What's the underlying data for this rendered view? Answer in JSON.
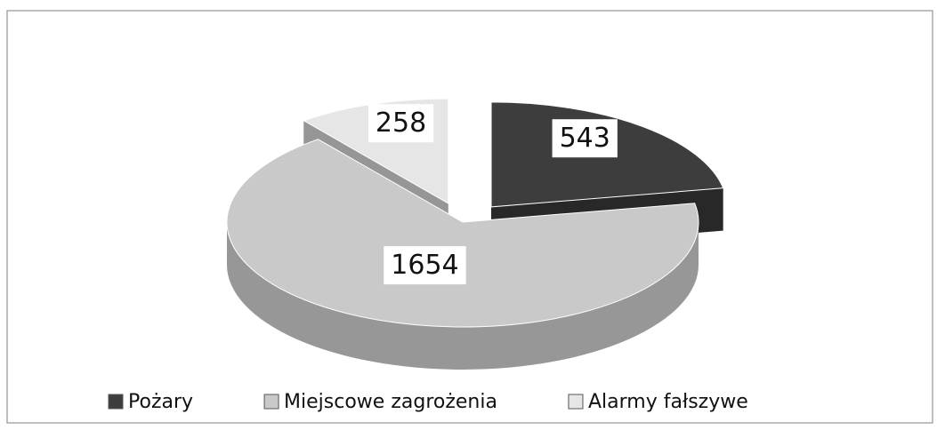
{
  "chart_data": {
    "type": "pie3d",
    "categories": [
      "Pożary",
      "Miejscowe zagrożenia",
      "Alarmy fałszywe"
    ],
    "values": [
      543,
      1654,
      258
    ],
    "colors": [
      "#3d3d3d",
      "#c9c9c9",
      "#e6e6e6"
    ],
    "exploded": [
      true,
      false,
      true
    ],
    "legend": "bottom"
  }
}
